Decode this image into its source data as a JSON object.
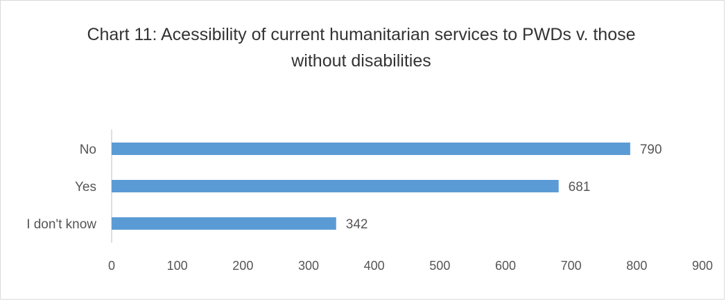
{
  "chart_data": {
    "type": "bar",
    "orientation": "horizontal",
    "title": "Chart 11: Acessibility of current humanitarian services to PWDs v. those without disabilities",
    "categories": [
      "No",
      "Yes",
      "I don't know"
    ],
    "values": [
      790,
      681,
      342
    ],
    "data_labels": [
      "790",
      "681",
      "342"
    ],
    "xlim": [
      0,
      900
    ],
    "x_ticks": [
      0,
      100,
      200,
      300,
      400,
      500,
      600,
      700,
      800,
      900
    ],
    "x_tick_labels": [
      "0",
      "100",
      "200",
      "300",
      "400",
      "500",
      "600",
      "700",
      "800",
      "900"
    ],
    "xlabel": "",
    "ylabel": "",
    "grid": false,
    "legend": "none",
    "bar_color": "#5b9bd5"
  }
}
